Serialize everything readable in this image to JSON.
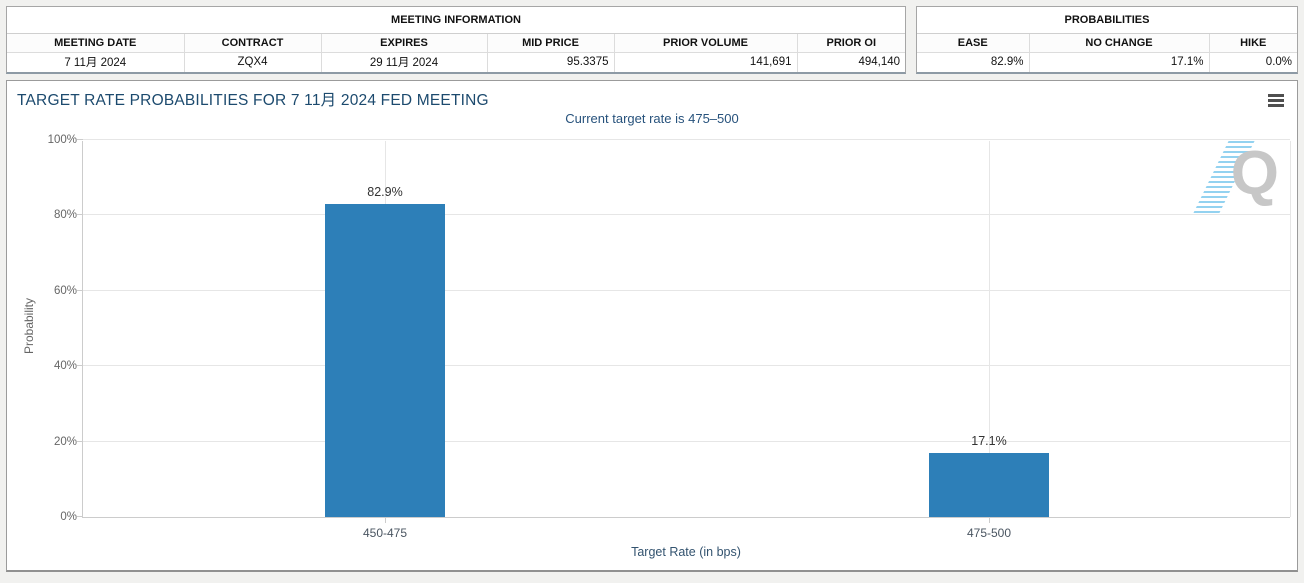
{
  "meeting_info": {
    "title": "MEETING INFORMATION",
    "columns": [
      "MEETING DATE",
      "CONTRACT",
      "EXPIRES",
      "MID PRICE",
      "PRIOR VOLUME",
      "PRIOR OI"
    ],
    "values": [
      "7 11月 2024",
      "ZQX4",
      "29 11月 2024",
      "95.3375",
      "141,691",
      "494,140"
    ]
  },
  "probabilities": {
    "title": "PROBABILITIES",
    "columns": [
      "EASE",
      "NO CHANGE",
      "HIKE"
    ],
    "values": [
      "82.9%",
      "17.1%",
      "0.0%"
    ]
  },
  "chart": {
    "menu_icon": "hamburger-icon",
    "watermark_letter": "Q"
  },
  "chart_data": {
    "type": "bar",
    "title": "TARGET RATE PROBABILITIES FOR 7 11月 2024 FED MEETING",
    "subtitle": "Current target rate is 475–500",
    "categories": [
      "450-475",
      "475-500"
    ],
    "values": [
      82.9,
      17.1
    ],
    "value_labels": [
      "82.9%",
      "17.1%"
    ],
    "xlabel": "Target Rate (in bps)",
    "ylabel": "Probability",
    "ylim": [
      0,
      100
    ],
    "yticks": [
      0,
      20,
      40,
      60,
      80,
      100
    ],
    "ytick_labels": [
      "0%",
      "20%",
      "40%",
      "60%",
      "80%",
      "100%"
    ],
    "grid": true,
    "legend": false,
    "bar_color": "#2d7fb8"
  },
  "colors": {
    "title_navy": "#1c4a6e",
    "subtitle_navy": "#27527c",
    "bar_blue": "#2d7fb8",
    "axis_gray": "#cccccc",
    "grid_gray": "#e6e6e6",
    "page_bg": "#f1f1ef"
  }
}
